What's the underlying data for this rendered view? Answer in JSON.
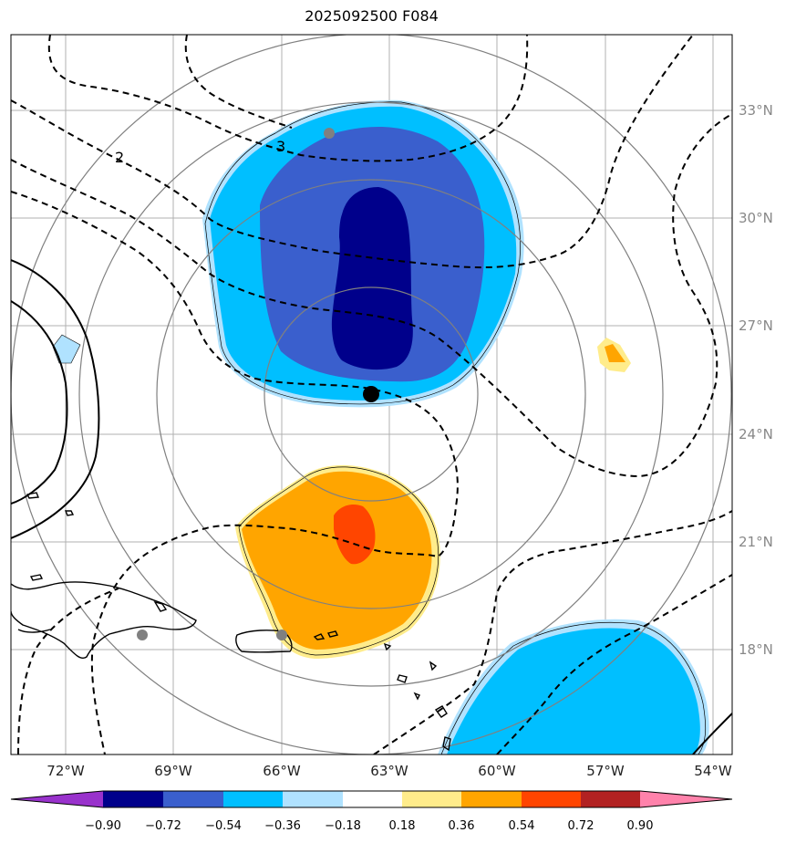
{
  "title": "2025092500 F084",
  "lon_ticks": [
    "72°W",
    "69°W",
    "66°W",
    "63°W",
    "60°W",
    "57°W",
    "54°W"
  ],
  "lat_ticks": [
    "33°N",
    "30°N",
    "27°N",
    "24°N",
    "21°N",
    "18°N"
  ],
  "contour_labels": [
    "2",
    "3"
  ],
  "colorbar": {
    "ticks": [
      "−0.90",
      "−0.72",
      "−0.54",
      "−0.36",
      "−0.18",
      "0.18",
      "0.36",
      "0.54",
      "0.72",
      "0.90"
    ],
    "colors": [
      "#9932cc",
      "#00008b",
      "#3a5fcd",
      "#00bfff",
      "#b0e2ff",
      "#ffffff",
      "#ffec8b",
      "#ffa500",
      "#ff4500",
      "#b22222",
      "#ff82ab"
    ]
  },
  "fill_colors": {
    "neg_light": "#b0e2ff",
    "neg_mid": "#00bfff",
    "neg_strong": "#3a5fcd",
    "neg_max": "#00008b",
    "pos_light": "#ffec8b",
    "pos_mid": "#ffa500",
    "pos_strong": "#ff4500"
  },
  "markers": {
    "storm_center": "black-dot",
    "stations": "gray-dot"
  }
}
